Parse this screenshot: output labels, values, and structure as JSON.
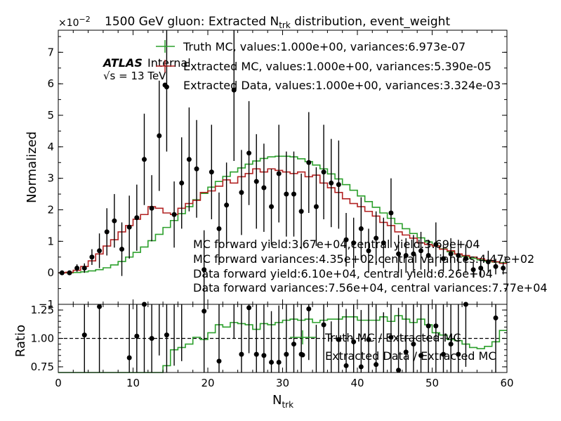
{
  "chart_data": [
    {
      "type": "line",
      "title": "1500 GeV gluon: Extracted N",
      "title_sub": "trk",
      "title_tail": " distribution, event_weight",
      "ylabel": "Normalized",
      "y_exponent_label": "×10",
      "y_exponent_power": "−2",
      "xlim": [
        0,
        60
      ],
      "ylim": [
        -1,
        7.7
      ],
      "y_ticks": [
        "−1",
        "0",
        "1",
        "2",
        "3",
        "4",
        "5",
        "6",
        "7"
      ],
      "atlas_label": "ATLAS",
      "atlas_sub": "Internal",
      "energy_label": "√s = 13 TeV",
      "legend": [
        {
          "name": "Truth MC, values:1.000e+00, variances:6.973e-07",
          "color": "#2ca02c",
          "style": "step"
        },
        {
          "name": "Extracted MC, values:1.000e+00, variances:5.390e-05",
          "color": "#b22222",
          "style": "step"
        },
        {
          "name": "Extracted Data, values:1.000e+00, variances:3.324e-03",
          "color": "#000000",
          "style": "marker"
        }
      ],
      "annotations": [
        "MC forward yield:3.67e+04,central yield:3.69e+04",
        "MC forward variances:4.35e+02,central variances:4.47e+02",
        "Data forward yield:6.10e+04, central yield:6.26e+04",
        "Data forward variances:7.56e+04, central variances:7.77e+04"
      ],
      "series": [
        {
          "name": "Truth MC",
          "color": "#2ca02c",
          "bin_width": 1,
          "x_start": 0,
          "values": [
            0.0,
            0.0,
            0.01,
            0.03,
            0.06,
            0.1,
            0.16,
            0.25,
            0.36,
            0.5,
            0.65,
            0.82,
            1.02,
            1.22,
            1.44,
            1.66,
            1.88,
            2.1,
            2.32,
            2.52,
            2.72,
            2.9,
            3.06,
            3.2,
            3.33,
            3.45,
            3.55,
            3.63,
            3.68,
            3.7,
            3.7,
            3.68,
            3.62,
            3.53,
            3.42,
            3.3,
            3.14,
            2.98,
            2.8,
            2.62,
            2.44,
            2.26,
            2.08,
            1.9,
            1.73,
            1.56,
            1.4,
            1.25,
            1.11,
            0.98,
            0.86,
            0.76,
            0.67,
            0.59,
            0.52,
            0.46,
            0.41,
            0.37,
            0.34,
            0.32
          ]
        },
        {
          "name": "Extracted MC",
          "color": "#b22222",
          "bin_width": 1,
          "x_start": 0,
          "values": [
            0.0,
            0.02,
            0.08,
            0.2,
            0.38,
            0.6,
            0.85,
            1.05,
            1.3,
            1.5,
            1.7,
            1.85,
            2.1,
            2.05,
            1.9,
            1.85,
            2.05,
            2.2,
            2.3,
            2.55,
            2.6,
            2.75,
            2.95,
            2.85,
            3.05,
            3.15,
            3.3,
            3.2,
            3.3,
            3.25,
            3.2,
            3.15,
            3.2,
            3.05,
            3.1,
            2.85,
            2.7,
            2.55,
            2.35,
            2.2,
            2.1,
            1.95,
            1.8,
            1.6,
            1.5,
            1.3,
            1.2,
            1.1,
            0.95,
            0.9,
            0.85,
            0.75,
            0.7,
            0.6,
            0.55,
            0.5,
            0.45,
            0.4,
            0.35,
            0.3
          ]
        },
        {
          "name": "Extracted Data",
          "color": "#000000",
          "x": [
            0.5,
            1.5,
            2.5,
            3.5,
            4.5,
            5.5,
            6.5,
            7.5,
            8.5,
            9.5,
            10.5,
            11.5,
            12.5,
            13.5,
            14.5,
            15.5,
            16.5,
            17.5,
            18.5,
            19.5,
            20.5,
            21.5,
            22.5,
            23.5,
            24.5,
            25.5,
            26.5,
            27.5,
            28.5,
            29.5,
            30.5,
            31.5,
            32.5,
            33.5,
            34.5,
            35.5,
            36.5,
            37.5,
            38.5,
            39.5,
            40.5,
            41.5,
            42.5,
            43.5,
            44.5,
            45.5,
            46.5,
            47.5,
            48.5,
            49.5,
            50.5,
            51.5,
            52.5,
            53.5,
            54.5,
            55.5,
            56.5,
            57.5,
            58.5,
            59.5
          ],
          "values": [
            0.0,
            0.0,
            0.15,
            0.15,
            0.5,
            0.7,
            1.3,
            1.65,
            0.75,
            1.45,
            1.75,
            3.6,
            2.05,
            4.35,
            5.9,
            1.85,
            2.85,
            3.6,
            3.3,
            0.1,
            3.2,
            1.4,
            2.15,
            5.8,
            2.55,
            3.8,
            2.9,
            2.7,
            2.1,
            3.15,
            2.5,
            2.5,
            1.95,
            3.5,
            2.1,
            3.2,
            2.85,
            2.8,
            1.05,
            0.95,
            1.4,
            0.7,
            1.1,
            0.95,
            1.9,
            0.6,
            0.55,
            0.6,
            0.7,
            0.55,
            0.9,
            0.45,
            0.6,
            0.55,
            0.45,
            0.1,
            0.15,
            0.35,
            0.2,
            0.15
          ],
          "errors": [
            0.05,
            0.05,
            0.12,
            0.15,
            0.25,
            0.55,
            0.75,
            0.85,
            0.85,
            1.0,
            1.05,
            1.45,
            1.05,
            1.75,
            2.05,
            1.05,
            1.45,
            1.65,
            1.55,
            1.25,
            1.5,
            1.15,
            1.35,
            2.25,
            1.35,
            1.65,
            1.5,
            1.4,
            1.2,
            1.55,
            1.35,
            1.35,
            1.2,
            1.6,
            1.25,
            1.5,
            1.4,
            1.4,
            0.85,
            0.8,
            1.0,
            0.7,
            0.85,
            0.8,
            1.1,
            0.6,
            0.55,
            0.6,
            0.6,
            0.5,
            0.7,
            0.45,
            0.5,
            0.5,
            0.45,
            0.25,
            0.25,
            0.35,
            0.25,
            0.2
          ]
        }
      ]
    },
    {
      "type": "line",
      "xlabel": "N",
      "xlabel_sub": "trk",
      "ylabel": "Ratio",
      "xlim": [
        0,
        60
      ],
      "ylim": [
        0.7,
        1.3
      ],
      "x_ticks": [
        "0",
        "10",
        "20",
        "30",
        "40",
        "50",
        "60"
      ],
      "y_ticks": [
        "0.75",
        "1.00",
        "1.25"
      ],
      "reference_line": 1.0,
      "legend": [
        {
          "name": "Truth MC / Extracted MC",
          "color": "#2ca02c",
          "style": "step"
        },
        {
          "name": "Extracted Data / Extracted MC",
          "color": "#000000",
          "style": "marker"
        }
      ],
      "series": [
        {
          "name": "Truth MC / Extracted MC",
          "color": "#2ca02c",
          "bin_width": 1,
          "x_start": 0,
          "values": [
            0.0,
            0.0,
            0.13,
            0.15,
            0.16,
            0.17,
            0.19,
            0.24,
            0.28,
            0.33,
            0.38,
            0.44,
            0.49,
            0.6,
            0.76,
            0.9,
            0.92,
            0.95,
            1.01,
            0.99,
            1.05,
            1.12,
            1.1,
            1.14,
            1.13,
            1.12,
            1.08,
            1.13,
            1.12,
            1.14,
            1.16,
            1.17,
            1.16,
            1.17,
            1.14,
            1.16,
            1.17,
            1.17,
            1.19,
            1.19,
            1.16,
            1.16,
            1.16,
            1.19,
            1.15,
            1.2,
            1.17,
            1.14,
            1.17,
            1.12,
            1.05,
            1.03,
            0.99,
            0.98,
            0.95,
            0.92,
            0.91,
            0.93,
            0.97,
            1.07
          ]
        },
        {
          "name": "Extracted Data / Extracted MC",
          "color": "#000000",
          "x": [
            0.5,
            1.5,
            2.5,
            3.5,
            4.5,
            5.5,
            6.5,
            7.5,
            8.5,
            9.5,
            10.5,
            11.5,
            12.5,
            13.5,
            14.5,
            15.5,
            16.5,
            17.5,
            18.5,
            19.5,
            20.5,
            21.5,
            22.5,
            23.5,
            24.5,
            25.5,
            26.5,
            27.5,
            28.5,
            29.5,
            30.5,
            31.5,
            32.5,
            33.5,
            34.5,
            35.5,
            36.5,
            37.5,
            38.5,
            39.5,
            40.5,
            41.5,
            42.5,
            43.5,
            44.5,
            45.5,
            46.5,
            47.5,
            48.5,
            49.5,
            50.5,
            51.5,
            52.5,
            53.5,
            54.5,
            55.5,
            56.5,
            57.5,
            58.5,
            59.5
          ],
          "values": [
            null,
            null,
            null,
            1.03,
            null,
            1.28,
            null,
            null,
            null,
            0.83,
            1.02,
            1.3,
            1.0,
            1.45,
            1.03,
            1.36,
            1.4,
            null,
            null,
            1.24,
            null,
            0.8,
            null,
            1.4,
            0.86,
            1.27,
            0.86,
            0.85,
            0.79,
            0.79,
            0.86,
            0.95,
            0.86,
            1.26,
            0.67,
            1.12,
            0.65,
            0.99,
            0.76,
            0.97,
            0.75,
            0.99,
            0.77,
            0.68,
            1.01,
            0.72,
            0.88,
            0.95,
            0.85,
            1.11,
            1.11,
            0.86,
            0.95,
            0.86,
            1.3,
            null,
            null,
            null,
            1.18,
            null
          ],
          "errors": [
            null,
            null,
            null,
            0.5,
            null,
            0.6,
            null,
            null,
            null,
            0.6,
            0.6,
            0.6,
            0.6,
            0.6,
            0.6,
            0.6,
            0.6,
            null,
            null,
            0.55,
            null,
            0.6,
            null,
            0.4,
            0.45,
            0.4,
            0.5,
            0.45,
            0.45,
            0.5,
            0.45,
            0.5,
            0.45,
            0.45,
            0.45,
            0.5,
            0.5,
            0.5,
            0.5,
            0.5,
            0.5,
            0.55,
            0.55,
            0.55,
            0.5,
            0.55,
            0.55,
            0.55,
            0.55,
            0.55,
            0.55,
            0.55,
            0.55,
            0.55,
            0.55,
            null,
            null,
            null,
            0.6,
            null
          ]
        }
      ]
    }
  ]
}
